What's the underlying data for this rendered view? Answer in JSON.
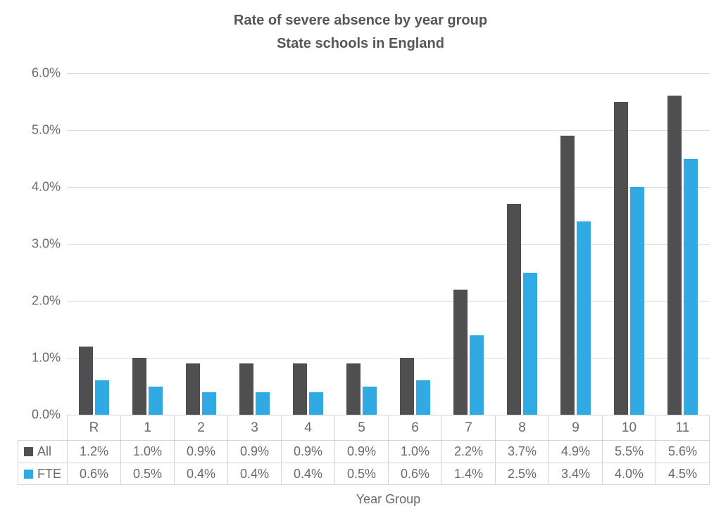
{
  "chart_data": {
    "type": "bar",
    "title": "Rate of severe absence by year group",
    "subtitle": "State schools in England",
    "xlabel": "Year Group",
    "ylabel": "",
    "categories": [
      "R",
      "1",
      "2",
      "3",
      "4",
      "5",
      "6",
      "7",
      "8",
      "9",
      "10",
      "11"
    ],
    "series": [
      {
        "name": "All",
        "color": "#4f4f52",
        "values": [
          1.2,
          1.0,
          0.9,
          0.9,
          0.9,
          0.9,
          1.0,
          2.2,
          3.7,
          4.9,
          5.5,
          5.6
        ],
        "display": [
          "1.2%",
          "1.0%",
          "0.9%",
          "0.9%",
          "0.9%",
          "0.9%",
          "1.0%",
          "2.2%",
          "3.7%",
          "4.9%",
          "5.5%",
          "5.6%"
        ]
      },
      {
        "name": "FTE",
        "color": "#31a9e2",
        "values": [
          0.6,
          0.5,
          0.4,
          0.4,
          0.4,
          0.5,
          0.6,
          1.4,
          2.5,
          3.4,
          4.0,
          4.5
        ],
        "display": [
          "0.6%",
          "0.5%",
          "0.4%",
          "0.4%",
          "0.4%",
          "0.5%",
          "0.6%",
          "1.4%",
          "2.5%",
          "3.4%",
          "4.0%",
          "4.5%"
        ]
      }
    ],
    "ylim": [
      0,
      6
    ],
    "yticks": [
      "0.0%",
      "1.0%",
      "2.0%",
      "3.0%",
      "4.0%",
      "5.0%",
      "6.0%"
    ],
    "grid": true,
    "legend_position": "table-row-headers"
  },
  "colors": {
    "grid": "#dcdcdc",
    "table_border": "#d4d4d4",
    "title_text": "#56565a",
    "axis_text": "#6a6a6a",
    "background": "#ffffff"
  }
}
